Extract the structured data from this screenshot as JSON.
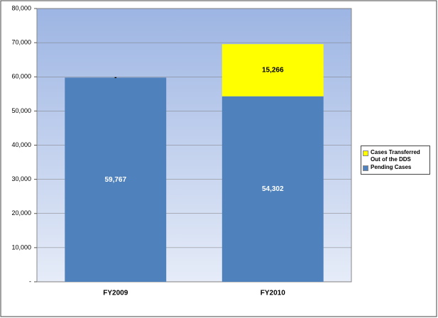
{
  "chart_data": {
    "type": "stacked-bar",
    "categories": [
      "FY2009",
      "FY2010"
    ],
    "series": [
      {
        "name": "Pending Cases",
        "color": "#4f81bd",
        "values": [
          59767,
          54302
        ],
        "value_labels": [
          "59,767",
          "54,302"
        ],
        "label_color": "#ffffff"
      },
      {
        "name": "Cases Transferred Out of the DDS",
        "color": "#ffff00",
        "values": [
          0,
          15266
        ],
        "value_labels": [
          "-",
          "15,266"
        ],
        "label_color": "#000000"
      }
    ],
    "ylim": [
      0,
      80000
    ],
    "yticks": [
      {
        "value": 0,
        "label": "-"
      },
      {
        "value": 10000,
        "label": "10,000"
      },
      {
        "value": 20000,
        "label": "20,000"
      },
      {
        "value": 30000,
        "label": "30,000"
      },
      {
        "value": 40000,
        "label": "40,000"
      },
      {
        "value": 50000,
        "label": "50,000"
      },
      {
        "value": 60000,
        "label": "60,000"
      },
      {
        "value": 70000,
        "label": "70,000"
      },
      {
        "value": 80000,
        "label": "80,000"
      }
    ],
    "grid": true,
    "legend": "right"
  }
}
